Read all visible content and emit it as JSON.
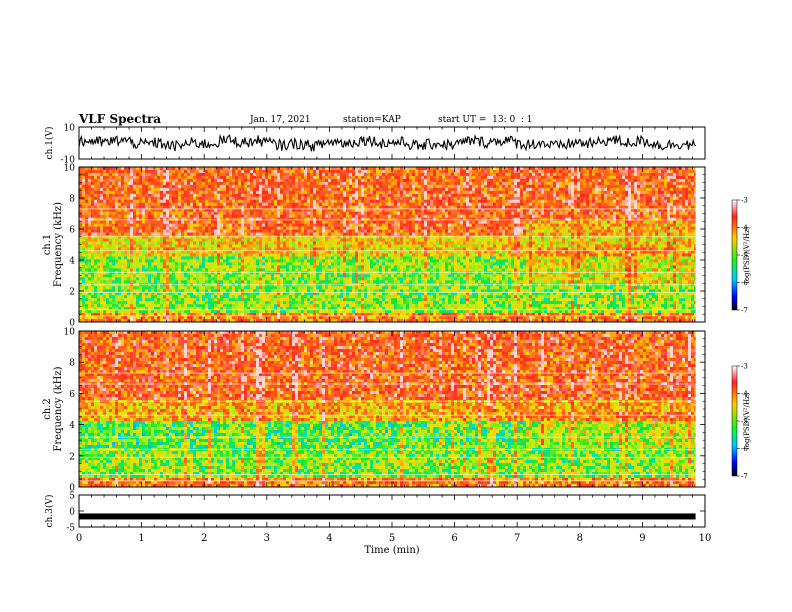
{
  "header": {
    "title": "VLF Spectra",
    "date": "Jan. 17, 2021",
    "station": "station=KAP",
    "start_ut": "start UT =  13: 0  : 1"
  },
  "chart_data": [
    {
      "id": "ch1-waveform",
      "type": "line",
      "ylabel": "ch.1(V)",
      "ylim": [
        -10,
        10
      ],
      "yticks": [
        "10",
        "-10"
      ],
      "xlim": [
        0,
        9.85
      ],
      "series": [
        {
          "color": "#000000"
        }
      ]
    },
    {
      "id": "ch1-spectrogram",
      "type": "heatmap",
      "ylabel": "ch.1",
      "ylabel2": "Frequency (kHz)",
      "ylim": [
        0,
        10
      ],
      "yticks": [
        "0",
        "2",
        "4",
        "6",
        "8",
        "10"
      ],
      "colorbar": {
        "label": "log(PSD)(V²/Hz)",
        "range": [
          -7,
          -3
        ],
        "ticks": [
          "-3",
          "-4",
          "-5",
          "-6",
          "-7"
        ]
      }
    },
    {
      "id": "ch2-spectrogram",
      "type": "heatmap",
      "ylabel": "ch.2",
      "ylabel2": "Frequency (kHz)",
      "ylim": [
        0,
        10
      ],
      "yticks": [
        "0",
        "2",
        "4",
        "6",
        "8",
        "10"
      ],
      "colorbar": {
        "label": "log(PSD)(V²/Hz)",
        "range": [
          -7,
          -3
        ],
        "ticks": [
          "-3",
          "-4",
          "-5",
          "-6",
          "-7"
        ]
      }
    },
    {
      "id": "ch3-waveform",
      "type": "line",
      "ylabel": "ch.3(V)",
      "ylim": [
        -5,
        5
      ],
      "yticks": [
        "5",
        "0",
        "-5"
      ],
      "series": [
        {
          "color": "#000000",
          "level": -1.7
        }
      ]
    }
  ],
  "time_axis": {
    "xlabel": "Time (min)",
    "xlim": [
      0,
      10
    ],
    "ticks": [
      "0",
      "1",
      "2",
      "3",
      "4",
      "5",
      "6",
      "7",
      "8",
      "9",
      "10"
    ]
  }
}
